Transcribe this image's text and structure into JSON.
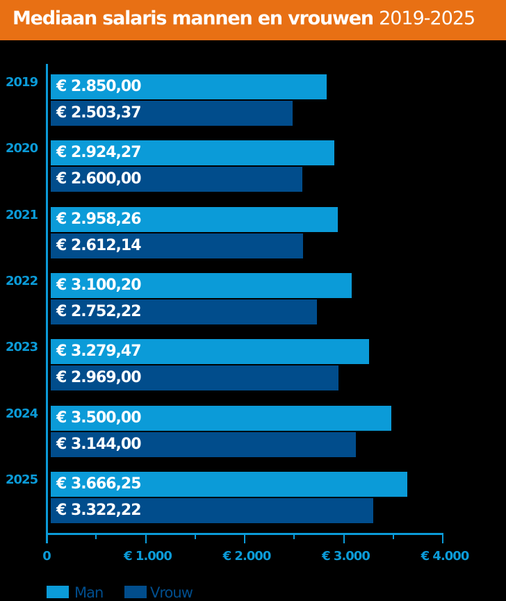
{
  "header": {
    "title": "Mediaan salaris mannen en vrouwen",
    "subtitle": "2019-2025"
  },
  "colors": {
    "header": "#e87014",
    "man": "#0b9bd8",
    "vrouw": "#014d8c",
    "axis": "#0b9bd8"
  },
  "axis": {
    "ticks": [
      "0",
      "€ 1.000",
      "€ 2.000",
      "€ 3.000",
      "€ 4.000"
    ]
  },
  "legend": {
    "man": "Man",
    "vrouw": "Vrouw"
  },
  "rows": [
    {
      "year": "2019",
      "man_label": "€ 2.850,00",
      "vrouw_label": "€ 2.503,37"
    },
    {
      "year": "2020",
      "man_label": "€ 2.924,27",
      "vrouw_label": "€ 2.600,00"
    },
    {
      "year": "2021",
      "man_label": "€ 2.958,26",
      "vrouw_label": "€ 2.612,14"
    },
    {
      "year": "2022",
      "man_label": "€ 3.100,20",
      "vrouw_label": "€ 2.752,22"
    },
    {
      "year": "2023",
      "man_label": "€ 3.279,47",
      "vrouw_label": "€ 2.969,00"
    },
    {
      "year": "2024",
      "man_label": "€ 3.500,00",
      "vrouw_label": "€ 3.144,00"
    },
    {
      "year": "2025",
      "man_label": "€ 3.666,25",
      "vrouw_label": "€ 3.322,22"
    }
  ],
  "chart_data": {
    "type": "bar",
    "orientation": "horizontal",
    "title": "Mediaan salaris mannen en vrouwen 2019-2025",
    "categories": [
      "2019",
      "2020",
      "2021",
      "2022",
      "2023",
      "2024",
      "2025"
    ],
    "series": [
      {
        "name": "Man",
        "color": "#0b9bd8",
        "values": [
          2850.0,
          2924.27,
          2958.26,
          3100.2,
          3279.47,
          3500.0,
          3666.25
        ]
      },
      {
        "name": "Vrouw",
        "color": "#014d8c",
        "values": [
          2503.37,
          2600.0,
          2612.14,
          2752.22,
          2969.0,
          3144.0,
          3322.22
        ]
      }
    ],
    "xlabel": "",
    "ylabel": "",
    "xlim": [
      0,
      4000
    ],
    "xticks": [
      "0",
      "€ 1.000",
      "€ 2.000",
      "€ 3.000",
      "€ 4.000"
    ],
    "grid": false,
    "legend_position": "bottom-left",
    "data_labels": true
  }
}
